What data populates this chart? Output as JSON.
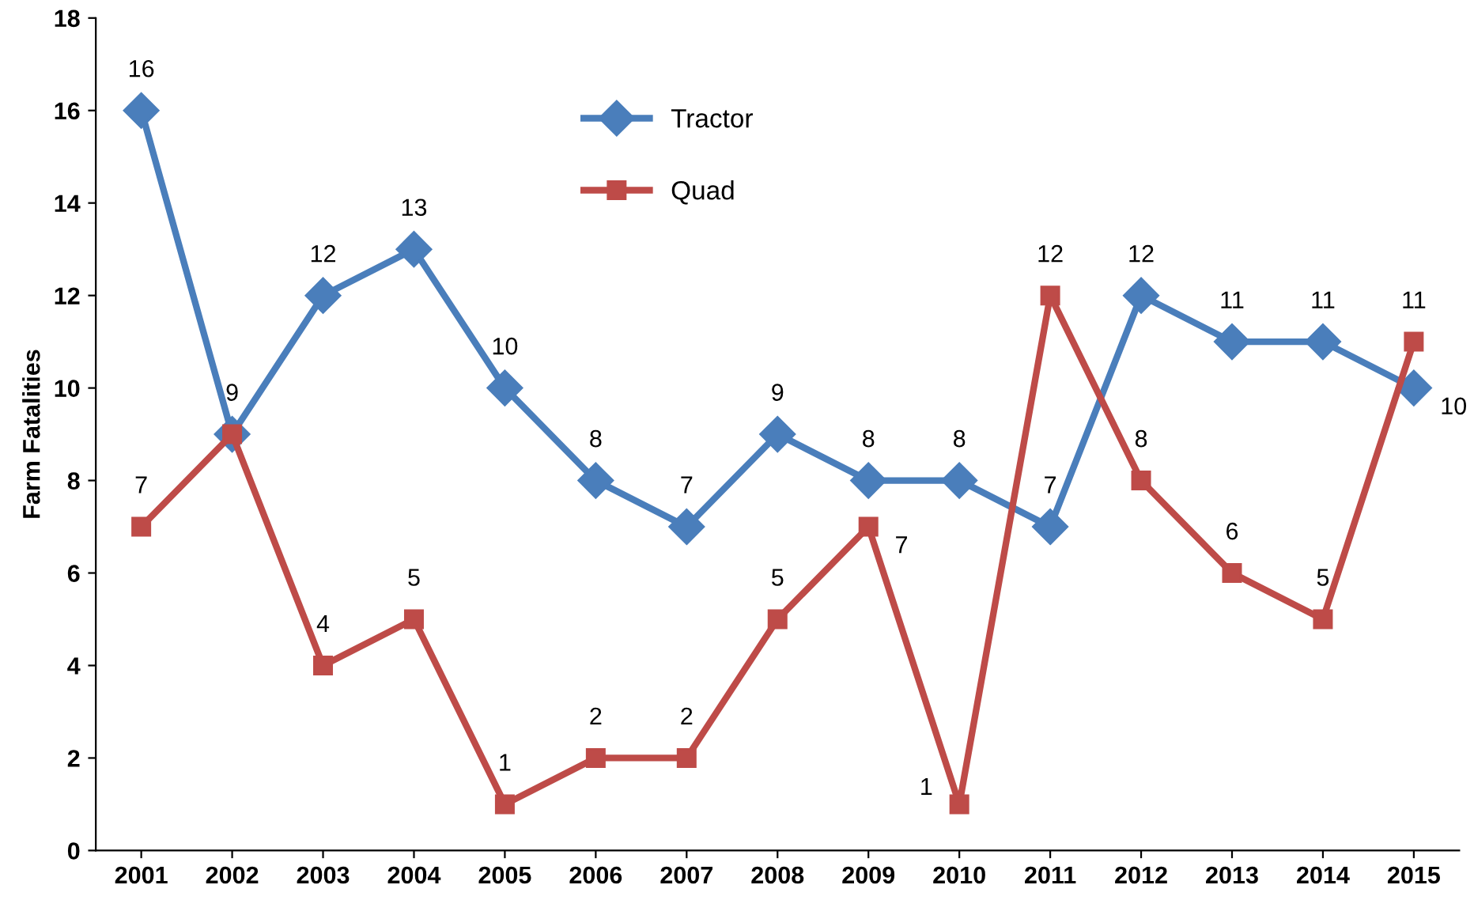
{
  "chart_data": {
    "type": "line",
    "ylabel": "Farm Fatalities",
    "categories": [
      "2001",
      "2002",
      "2003",
      "2004",
      "2005",
      "2006",
      "2007",
      "2008",
      "2009",
      "2010",
      "2011",
      "2012",
      "2013",
      "2014",
      "2015"
    ],
    "series": [
      {
        "name": "Tractor",
        "color": "#4a7ebb",
        "marker": "diamond",
        "values": [
          16,
          9,
          12,
          13,
          10,
          8,
          7,
          9,
          8,
          8,
          7,
          12,
          11,
          11,
          10
        ],
        "value_labels": [
          "16",
          null,
          "12",
          "13",
          "10",
          "8",
          "7",
          "9",
          "8",
          "8",
          "7",
          "12",
          "11",
          "11",
          "10"
        ]
      },
      {
        "name": "Quad",
        "color": "#be4b48",
        "marker": "square",
        "values": [
          7,
          9,
          4,
          5,
          1,
          2,
          2,
          5,
          7,
          1,
          12,
          8,
          6,
          5,
          11
        ],
        "value_labels": [
          "7",
          "9",
          "4",
          "5",
          "1",
          "2",
          "2",
          "5",
          "7",
          "1",
          "12",
          "8",
          "6",
          "5",
          "11"
        ]
      }
    ],
    "ylim": [
      0,
      18
    ],
    "yticks": [
      0,
      2,
      4,
      6,
      8,
      10,
      12,
      14,
      16,
      18
    ],
    "grid": false,
    "legend": "top",
    "line_style": "solid"
  }
}
